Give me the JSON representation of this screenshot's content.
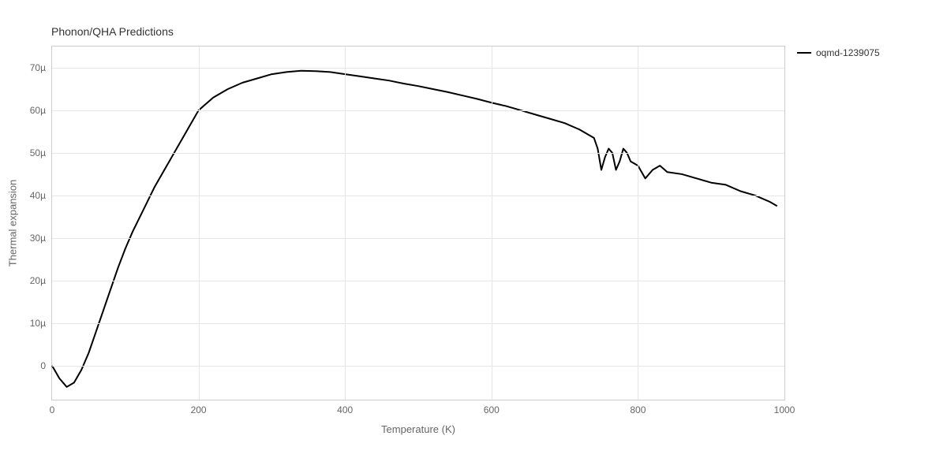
{
  "chart": {
    "type": "line",
    "title": "Phonon/QHA Predictions",
    "title_fontsize": 14,
    "title_color": "#333333",
    "background_color": "#ffffff",
    "plot_border_color": "#cccccc",
    "grid_color": "#e6e6e6",
    "tick_font_color": "#666666",
    "tick_fontsize": 12,
    "axis_label_fontsize": 13,
    "axis_label_color": "#666666",
    "x": {
      "label": "Temperature (K)",
      "min": 0,
      "max": 1000,
      "ticks": [
        0,
        200,
        400,
        600,
        800,
        1000
      ],
      "tick_labels": [
        "0",
        "200",
        "400",
        "600",
        "800",
        "1000"
      ]
    },
    "y": {
      "label": "Thermal expansion",
      "min": -8,
      "max": 75,
      "ticks": [
        0,
        10,
        20,
        30,
        40,
        50,
        60,
        70
      ],
      "tick_labels": [
        "0",
        "10µ",
        "20µ",
        "30µ",
        "40µ",
        "50µ",
        "60µ",
        "70µ"
      ]
    },
    "legend": {
      "position": "right",
      "items": [
        {
          "label": "oqmd-1239075",
          "color": "#000000"
        }
      ]
    },
    "series": [
      {
        "name": "oqmd-1239075",
        "color": "#000000",
        "line_width": 2,
        "x": [
          0,
          10,
          20,
          30,
          40,
          50,
          60,
          70,
          80,
          90,
          100,
          110,
          120,
          130,
          140,
          150,
          160,
          170,
          180,
          190,
          200,
          220,
          240,
          260,
          280,
          300,
          320,
          340,
          360,
          380,
          400,
          420,
          440,
          460,
          480,
          500,
          520,
          540,
          560,
          580,
          600,
          620,
          640,
          660,
          680,
          700,
          720,
          740,
          745,
          750,
          755,
          760,
          765,
          770,
          775,
          780,
          785,
          790,
          800,
          810,
          820,
          830,
          840,
          860,
          880,
          900,
          920,
          940,
          960,
          980,
          990
        ],
        "y": [
          0,
          -3,
          -5,
          -4,
          -1,
          3,
          8,
          13,
          18,
          23,
          27.5,
          31.5,
          35,
          38.5,
          42,
          45,
          48,
          51,
          54,
          57,
          60,
          63,
          65,
          66.5,
          67.5,
          68.5,
          69,
          69.3,
          69.2,
          69,
          68.5,
          68,
          67.5,
          67,
          66.3,
          65.7,
          65,
          64.3,
          63.5,
          62.7,
          61.8,
          61,
          60,
          59,
          58,
          57,
          55.5,
          53.5,
          51,
          46,
          49,
          51,
          50,
          46,
          48,
          51,
          50,
          48,
          47,
          44,
          46,
          47,
          45.5,
          45,
          44,
          43,
          42.5,
          41,
          40,
          38.5,
          37.5
        ]
      }
    ]
  }
}
